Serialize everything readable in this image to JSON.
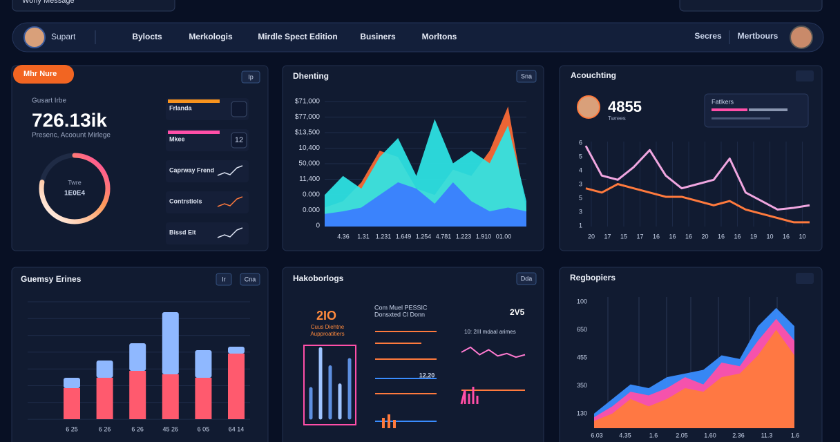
{
  "search": "Wony Message",
  "nav": {
    "user": "Supart",
    "items": [
      "Bylocts",
      "Merkologis",
      "Mirdle Spect Edition",
      "Businers",
      "Morltons"
    ],
    "right": [
      "Secres",
      "Mertbours"
    ]
  },
  "summary": {
    "badge": "Mhr Nure",
    "button": "Ip",
    "label": "Gusart Irbe",
    "value": "726.13ik",
    "subtitle": "Presenc, Acoount Mirlege",
    "ring": {
      "value": 78,
      "lim": [
        0,
        100
      ],
      "label": "Twre",
      "value_label": "1E0E4"
    },
    "items": [
      "Frlanda",
      "Mkee",
      "Caprway Frend",
      "Contrstiols",
      "Bissd Eit"
    ],
    "item_value": "12"
  },
  "area_chart": {
    "title": "Dhenting",
    "button": "Sna",
    "y_labels": [
      "$71,000",
      "$77,000",
      "$13,500",
      "10,400",
      "50,000",
      "11,400",
      "0.000",
      "0.000",
      "0"
    ],
    "x_labels": [
      "4.36",
      "1.31",
      "1.231",
      "1.649",
      "1.254",
      "4.781",
      "1.223",
      "1.910",
      "01.00"
    ],
    "ylim": [
      0,
      100
    ],
    "series": [
      {
        "color": "#ff6b35",
        "values": [
          15,
          20,
          35,
          60,
          55,
          30,
          25,
          45,
          40,
          60,
          95,
          12
        ]
      },
      {
        "color": "#2ee6e6",
        "values": [
          25,
          40,
          30,
          55,
          70,
          40,
          85,
          50,
          60,
          50,
          80,
          20
        ]
      },
      {
        "color": "#3b7bff",
        "values": [
          10,
          12,
          15,
          25,
          35,
          30,
          18,
          35,
          20,
          12,
          15,
          12
        ]
      }
    ]
  },
  "line_chart": {
    "title": "Acouchting",
    "value": "4855",
    "value_caption": "Twrees",
    "card_title": "Fatlkers",
    "y_labels": [
      "6",
      "5",
      "4",
      "3",
      "5",
      "3",
      "1"
    ],
    "x_labels": [
      "20",
      "17",
      "15",
      "17",
      "16",
      "16",
      "16",
      "20",
      "16",
      "16",
      "19",
      "10",
      "16",
      "10"
    ],
    "ylim": [
      0,
      100
    ],
    "series": [
      {
        "color": "#f0a6e0",
        "values": [
          95,
          60,
          55,
          70,
          90,
          60,
          45,
          50,
          55,
          80,
          40,
          30,
          20,
          22,
          25
        ]
      },
      {
        "color": "#ff7a3d",
        "values": [
          45,
          40,
          50,
          45,
          40,
          35,
          35,
          30,
          25,
          30,
          20,
          15,
          10,
          5,
          5
        ]
      }
    ]
  },
  "bar_chart": {
    "title": "Guemsy Erines",
    "buttons": [
      "Ir",
      "Cna"
    ],
    "x_labels": [
      "6 25",
      "6 26",
      "6 26",
      "45 26",
      "6 05",
      "64 14"
    ],
    "ylim": [
      0,
      170
    ],
    "series": [
      {
        "color": "#ff5a6e",
        "values": [
          45,
          60,
          70,
          65,
          60,
          95
        ]
      },
      {
        "color": "#8fb8ff",
        "values": [
          15,
          25,
          40,
          90,
          40,
          10
        ]
      }
    ]
  },
  "widgets": {
    "title": "Hakoborlogs",
    "button": "Dda",
    "big": "2IO",
    "caption": [
      "Cuus Diehtne",
      "Aupproatitiers"
    ],
    "heading": [
      "Com Muel PESSIC",
      "Donsxted Cl Donn"
    ],
    "counter": "2V5",
    "legend": "10: 2III mdaal arimes",
    "reading": "12,20",
    "levels": [
      40,
      95,
      70,
      45,
      80
    ],
    "levels_lim": [
      0,
      100
    ],
    "trend": [
      50,
      70,
      40,
      60,
      35,
      45,
      30,
      40
    ],
    "trend_lim": [
      0,
      100
    ]
  },
  "wave_chart": {
    "title": "Regbopiers",
    "y_labels": [
      "100",
      "650",
      "455",
      "350",
      "130"
    ],
    "x_labels": [
      "6.03",
      "4.35",
      "1.6",
      "2.05",
      "1.60",
      "2.36",
      "11.3",
      "1.6"
    ],
    "ylim": [
      0,
      180
    ],
    "series": [
      {
        "color": "#3a8dff",
        "values": [
          20,
          40,
          60,
          55,
          70,
          75,
          80,
          100,
          95,
          140,
          165,
          140
        ]
      },
      {
        "color": "#ff4fa8",
        "values": [
          15,
          30,
          50,
          45,
          55,
          70,
          60,
          90,
          85,
          120,
          150,
          120
        ]
      },
      {
        "color": "#ff7a3d",
        "values": [
          10,
          20,
          40,
          30,
          40,
          55,
          50,
          70,
          75,
          100,
          135,
          100
        ]
      }
    ]
  }
}
